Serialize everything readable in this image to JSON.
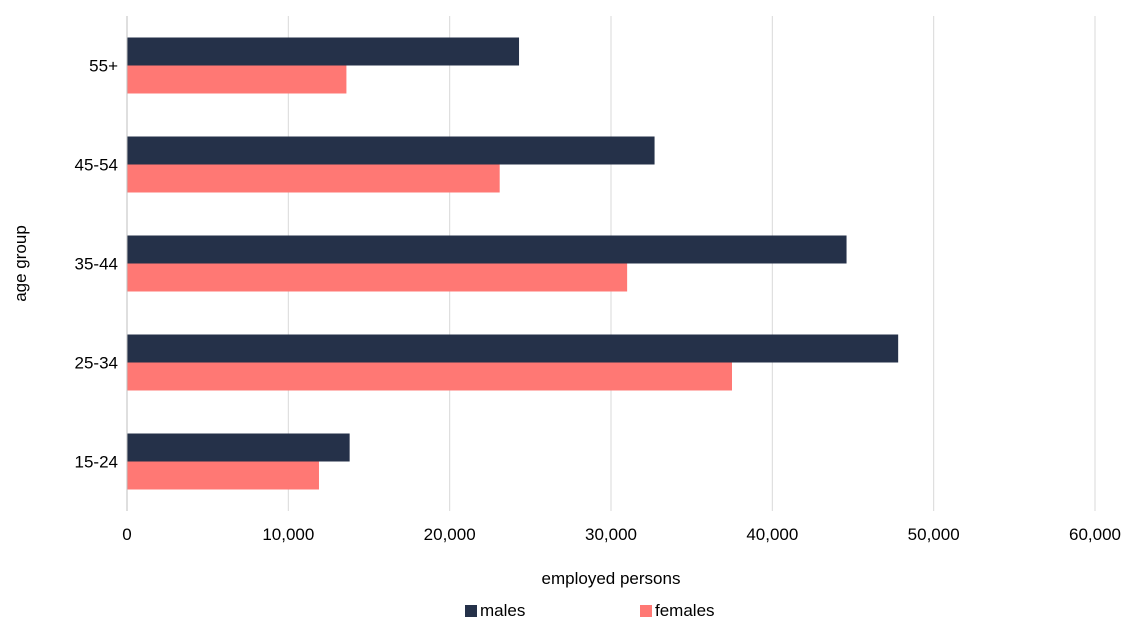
{
  "chart_data": {
    "type": "bar",
    "orientation": "horizontal",
    "categories": [
      "15-24",
      "25-34",
      "35-44",
      "45-54",
      "55+"
    ],
    "series": [
      {
        "name": "males",
        "color": "#253149",
        "values": [
          13800,
          47800,
          44600,
          32700,
          24300
        ]
      },
      {
        "name": "females",
        "color": "#FF7874",
        "values": [
          11900,
          37500,
          31000,
          23100,
          13600
        ]
      }
    ],
    "xlabel": "employed persons",
    "ylabel": "age group",
    "xlim": [
      0,
      60000
    ],
    "x_ticks": [
      0,
      10000,
      20000,
      30000,
      40000,
      50000,
      60000
    ],
    "x_tick_labels": [
      "0",
      "10,000",
      "20,000",
      "30,000",
      "40,000",
      "50,000",
      "60,000"
    ],
    "grid": "vertical",
    "legend": "bottom"
  }
}
